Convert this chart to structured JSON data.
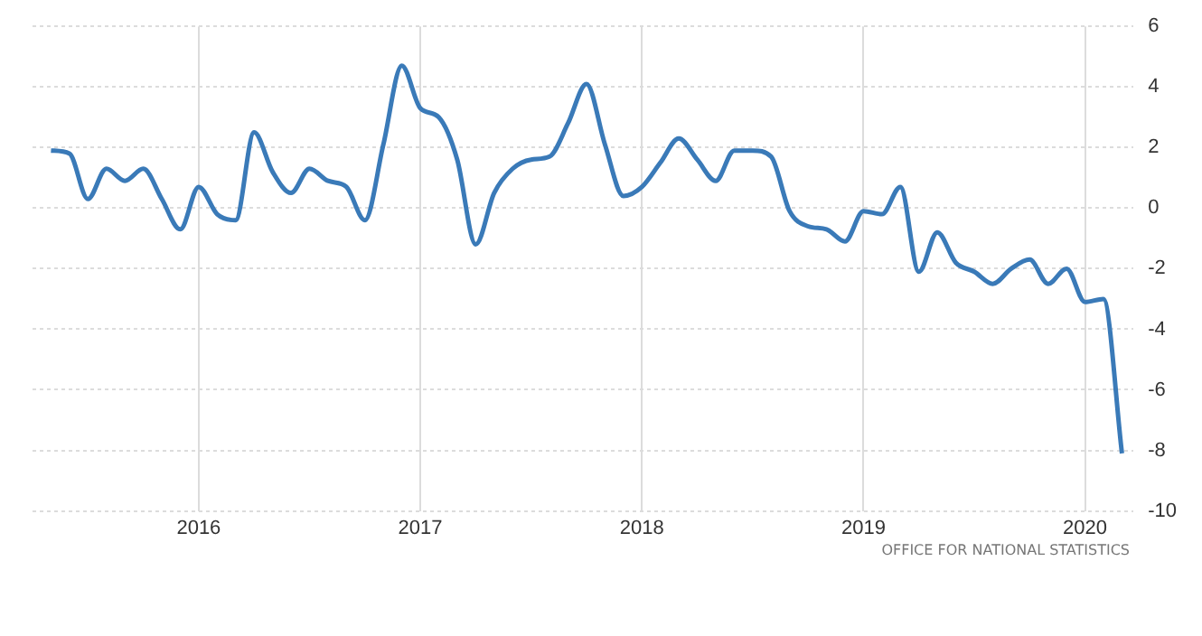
{
  "chart_data": {
    "type": "line",
    "x": [
      "2015-05",
      "2015-06",
      "2015-07",
      "2015-08",
      "2015-09",
      "2015-10",
      "2015-11",
      "2015-12",
      "2016-01",
      "2016-02",
      "2016-03",
      "2016-04",
      "2016-05",
      "2016-06",
      "2016-07",
      "2016-08",
      "2016-09",
      "2016-10",
      "2016-11",
      "2016-12",
      "2017-01",
      "2017-02",
      "2017-03",
      "2017-04",
      "2017-05",
      "2017-06",
      "2017-07",
      "2017-08",
      "2017-09",
      "2017-10",
      "2017-11",
      "2017-12",
      "2018-01",
      "2018-02",
      "2018-03",
      "2018-04",
      "2018-05",
      "2018-06",
      "2018-07",
      "2018-08",
      "2018-09",
      "2018-10",
      "2018-11",
      "2018-12",
      "2019-01",
      "2019-02",
      "2019-03",
      "2019-04",
      "2019-05",
      "2019-06",
      "2019-07",
      "2019-08",
      "2019-09",
      "2019-10",
      "2019-11",
      "2019-12",
      "2020-01",
      "2020-02",
      "2020-03"
    ],
    "series": [
      {
        "color": "#3a7ab8",
        "values": [
          1.9,
          1.8,
          0.3,
          1.3,
          0.9,
          1.3,
          0.3,
          -0.7,
          0.7,
          -0.2,
          -0.4,
          2.5,
          1.2,
          0.5,
          1.3,
          0.9,
          0.7,
          -0.4,
          2.1,
          4.7,
          3.3,
          3.0,
          1.6,
          -1.2,
          0.5,
          1.3,
          1.6,
          1.7,
          2.8,
          4.1,
          2.1,
          0.4,
          0.7,
          1.5,
          2.3,
          1.6,
          0.9,
          1.9,
          1.9,
          1.7,
          -0.1,
          -0.6,
          -0.7,
          -1.1,
          -0.1,
          -0.2,
          0.7,
          -2.1,
          -0.8,
          -1.8,
          -2.1,
          -2.5,
          -2.0,
          -1.7,
          -2.5,
          -2.0,
          -3.1,
          -3.0,
          -8.1
        ]
      }
    ],
    "xlim": [
      "2015-04",
      "2020-03-20"
    ],
    "xticks": [
      "2016",
      "2017",
      "2018",
      "2019",
      "2020"
    ],
    "ylim": [
      -10,
      6
    ],
    "yticks": [
      -10,
      -8,
      -6,
      -4,
      -2,
      0,
      2,
      4,
      6
    ],
    "grid": true,
    "legend": false,
    "marker": "none",
    "line_style": "solid",
    "annotations": [
      "OFFICE FOR NATIONAL STATISTICS"
    ]
  }
}
